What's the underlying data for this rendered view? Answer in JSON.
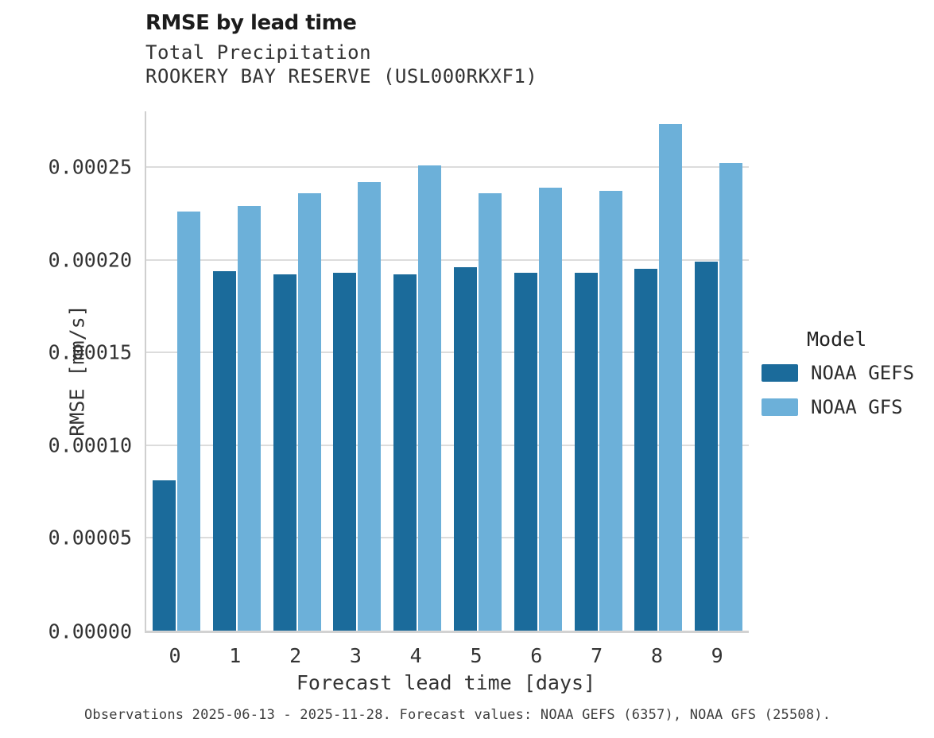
{
  "header": {
    "title": "RMSE by lead time",
    "subtitle1": "Total Precipitation",
    "subtitle2": "ROOKERY BAY RESERVE (USL000RKXF1)"
  },
  "chart_data": {
    "type": "bar",
    "title": "RMSE by lead time",
    "subtitle": [
      "Total Precipitation",
      "ROOKERY BAY RESERVE (USL000RKXF1)"
    ],
    "categories": [
      "0",
      "1",
      "2",
      "3",
      "4",
      "5",
      "6",
      "7",
      "8",
      "9"
    ],
    "series": [
      {
        "name": "NOAA GEFS",
        "color": "#1b6b9b",
        "values": [
          8.1e-05,
          0.000194,
          0.000192,
          0.000193,
          0.000192,
          0.000196,
          0.000193,
          0.000193,
          0.000195,
          0.000199
        ]
      },
      {
        "name": "NOAA GFS",
        "color": "#6cb0d9",
        "values": [
          0.000226,
          0.000229,
          0.000236,
          0.000242,
          0.000251,
          0.000236,
          0.000239,
          0.000237,
          0.000273,
          0.000252
        ]
      }
    ],
    "xlabel": "Forecast lead time [days]",
    "ylabel": "RMSE [mm/s]",
    "ylim": [
      0,
      0.00028
    ],
    "yticks": [
      0,
      5e-05,
      0.0001,
      0.00015,
      0.0002,
      0.00025
    ],
    "ytick_labels": [
      "0.00000",
      "0.00005",
      "0.00010",
      "0.00015",
      "0.00020",
      "0.00025"
    ],
    "grid": true,
    "legend_title": "Model",
    "legend_position": "right"
  },
  "legend": {
    "title": "Model",
    "entries": [
      {
        "label": "NOAA GEFS",
        "color": "#1b6b9b"
      },
      {
        "label": "NOAA GFS",
        "color": "#6cb0d9"
      }
    ]
  },
  "caption": "Observations 2025-06-13 - 2025-11-28. Forecast values: NOAA GEFS (6357), NOAA GFS (25508)."
}
